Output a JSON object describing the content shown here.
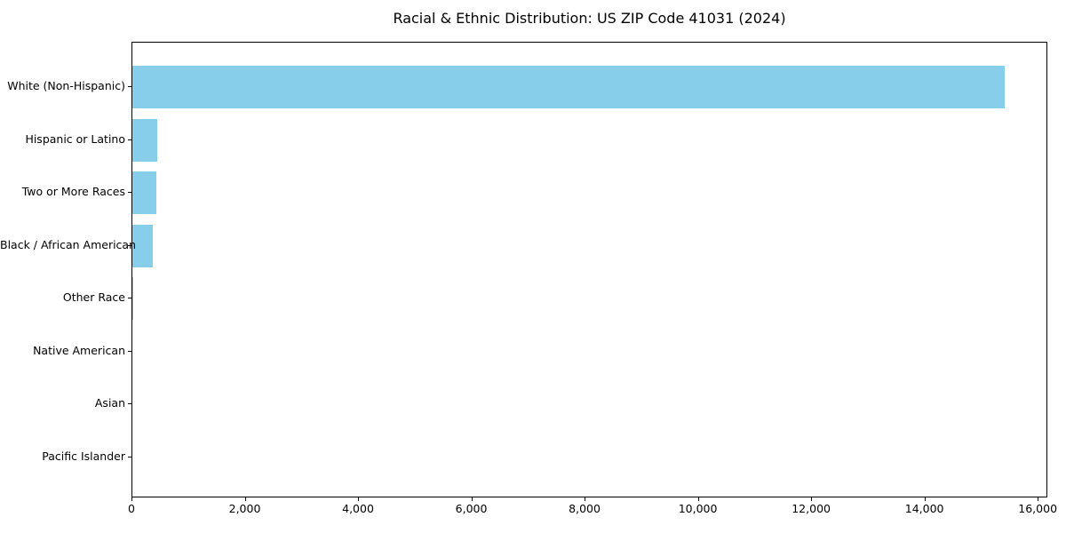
{
  "chart_data": {
    "type": "bar",
    "orientation": "horizontal",
    "title": "Racial & Ethnic Distribution: US ZIP Code 41031 (2024)",
    "categories": [
      "White (Non-Hispanic)",
      "Hispanic or Latino",
      "Two or More Races",
      "Black / African American",
      "Other Race",
      "Native American",
      "Asian",
      "Pacific Islander"
    ],
    "values": [
      15400,
      445,
      430,
      360,
      12,
      0,
      0,
      0
    ],
    "bar_color": "#87CEEB",
    "xlabel": "",
    "ylabel": "",
    "xlim": [
      0,
      16170
    ],
    "x_ticks": [
      0,
      2000,
      4000,
      6000,
      8000,
      10000,
      12000,
      14000,
      16000
    ],
    "x_tick_labels": [
      "0",
      "2,000",
      "4,000",
      "6,000",
      "8,000",
      "10,000",
      "12,000",
      "14,000",
      "16,000"
    ],
    "grid": false,
    "legend_position": "none",
    "axis_color": "#000000",
    "background_color": "#ffffff"
  }
}
